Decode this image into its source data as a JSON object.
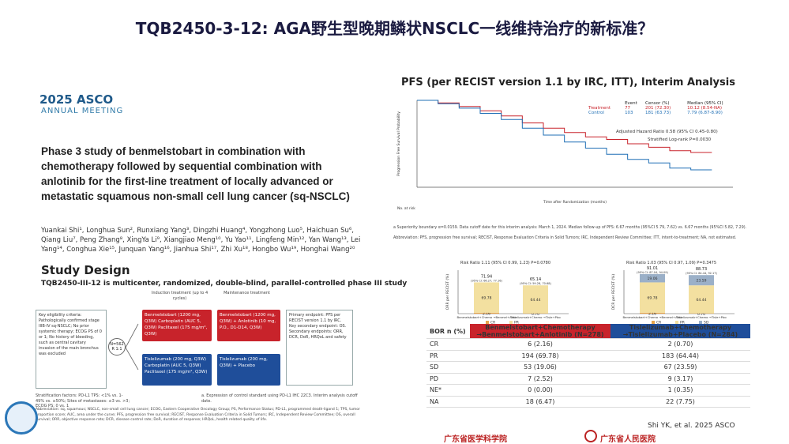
{
  "title": "TQB2450-3-12: AGA野生型晚期鳞状NSCLC一线维持治疗的新标准？",
  "conference": {
    "year_name": "2025 ASCO",
    "subtitle": "ANNUAL MEETING"
  },
  "study_title": "Phase 3 study of benmelstobart in combination with chemotherapy followed by sequential combination with anlotinib for the first-line treatment of locally advanced or metastatic squamous non-small cell lung cancer (sq-NSCLC)",
  "authors": "Yuankai Shi¹, Longhua Sun², Runxiang Yang³, Dingzhi Huang⁴, Yongzhong Luo⁵, Haichuan Su⁶, Qiang Liu⁷, Peng Zhang⁸, XingYa Li⁹, Xiangjiao Meng¹⁰, Yu Yao¹¹, Lingfeng Min¹², Yan Wang¹³, Lei Yang¹⁴, Conghua Xie¹⁵, Junquan Yang¹⁶, Jianhua Shi¹⁷, Zhi Xu¹⁸, Hongbo Wu¹⁹, Honghai Wang²⁰",
  "study_design": {
    "heading": "Study Design",
    "subheading": "TQB2450-III-12 is multicenter, randomized, double-blind, parallel-controlled phase III study",
    "criteria": "Key eligibility criteria: Pathologically confirmed stage IIIB-IV sq-NSCLC; No prior systemic therapy; ECOG PS of 0 or 1; No history of bleeding, such as central cavitary invasion of the main bronchus was excluded",
    "randomization": "N=562 R 1:1",
    "induction_label": "Induction treatment (up to 4 cycles)",
    "maintenance_label": "Maintenance treatment",
    "arm_a_induction": "Benmelstobart (1200 mg, Q3W) Carboplatin (AUC 5, Q3W) Paclitaxel (175 mg/m², Q3W)",
    "arm_a_maint": "Benmelstobart (1200 mg, Q3W) + Anlotinib (10 mg, P.O., D1-D14, Q3W)",
    "arm_b_induction": "Tislelizumab (200 mg, Q3W) Carboplatin (AUC 5, Q3W) Paclitaxel (175 mg/m², Q3W)",
    "arm_b_maint": "Tislelizumab (200 mg, Q3W) + Placebo",
    "endpoints": "Primary endpoint: PFS per RECIST version 1.1 by IRC. Key secondary endpoint: OS. Secondary endpoints: ORR, DCR, DoR, HRQoL and safety",
    "stratification": "Stratification factors: PD-L1 TPS: <1% vs. 1-49% vs. ≥50%; Sites of metastases: ≤3 vs. >3; ECOG PS: 0 vs. 1",
    "note": "a. Expression of control standard using PD-L1 IHC 22C3. Interim analysis cutoff date.",
    "abbrev": "Abbreviation: sq, squamous; NSCLC, non-small cell lung cancer; ECOG, Eastern Cooperative Oncology Group; PS, Performance Status; PD-L1, programmed death-ligand 1; TPS, tumor proportion score; AUC, area under the curve; PFS, progression free survival; RECIST, Response Evaluation Criteria in Solid Tumors; IRC, Independent Review Committee; OS, overall survival; ORR, objective response rate; DCR, disease control rate; DoR, duration of response; HRQoL, health related quality of life."
  },
  "pfs": {
    "title": "PFS (per RECIST version 1.1 by IRC, ITT), Interim Analysis",
    "table_headers": [
      "",
      "Event",
      "Censor (%)",
      "Median (95% CI)"
    ],
    "rows": [
      {
        "arm": "Treatment",
        "event": "77",
        "censor": "201 (72.30)",
        "median": "10.12 (8.54-NA)",
        "color": "#c8232b"
      },
      {
        "arm": "Control",
        "event": "103",
        "censor": "181 (63.73)",
        "median": "7.79 (6.87-8.90)",
        "color": "#1f6fb5"
      }
    ],
    "hr_text": "Adjusted Hazard Ratio 0.58 (95% CI 0.45-0.80)",
    "logrank": "Stratified Log-rank P=0.0030",
    "footnote": "a Superiority boundary α=0.0159. Data cutoff date for this interim analysis: March 1, 2024. Median follow-up of PFS: 6.67 months (95%CI 5.79, 7.62) vs. 6.67 months (95%CI 5.82, 7.29).",
    "abbrev": "Abbreviation: PFS, progression free survival; RECIST, Response Evaluation Criteria in Solid Tumors; IRC, Independent Review Committee; ITT, intent-to-treatment; NA, not estimated.",
    "x_label": "Time after Randomization (months)",
    "y_label": "Progression Free Survival Probability",
    "at_risk_label": "No. at risk"
  },
  "chart_data": [
    {
      "type": "line",
      "title": "PFS (per RECIST version 1.1 by IRC, ITT), Interim Analysis",
      "xlabel": "Time after Randomization (months)",
      "ylabel": "Progression Free Survival Probability",
      "xlim": [
        0,
        15
      ],
      "ylim": [
        0,
        1
      ],
      "series": [
        {
          "name": "Treatment",
          "color": "#c8232b",
          "x": [
            0,
            1,
            2,
            3,
            4,
            5,
            6,
            7,
            8,
            9,
            10,
            11,
            12,
            13,
            14
          ],
          "y": [
            1.0,
            0.97,
            0.93,
            0.88,
            0.82,
            0.74,
            0.68,
            0.63,
            0.58,
            0.55,
            0.5,
            0.46,
            0.42,
            0.4,
            0.4
          ]
        },
        {
          "name": "Control",
          "color": "#1f6fb5",
          "x": [
            0,
            1,
            2,
            3,
            4,
            5,
            6,
            7,
            8,
            9,
            10,
            11,
            12,
            13,
            14
          ],
          "y": [
            1.0,
            0.96,
            0.91,
            0.85,
            0.78,
            0.68,
            0.6,
            0.52,
            0.45,
            0.38,
            0.32,
            0.28,
            0.22,
            0.2,
            0.2
          ]
        }
      ]
    },
    {
      "type": "bar",
      "title": "Risk Ratio 1.11 (95% CI 0.99, 1.23) P=0.0780",
      "ylabel": "ORR per RECIST (%)",
      "categories": [
        "Benmelstobart+Chemo →Benmel+Anlo",
        "Tislelizumab+Chemo →Tisle+Pbo"
      ],
      "stack": [
        [
          2.16,
          69.78
        ],
        [
          0.7,
          64.44
        ]
      ],
      "totals": [
        "71.94",
        "65.14"
      ],
      "ci": [
        "(95% CI: 66.27, 77.16)",
        "(95% CI: 59.28, 70.68)"
      ],
      "legend": [
        "CR",
        "PR"
      ],
      "ylim": [
        0,
        100
      ]
    },
    {
      "type": "bar",
      "title": "Risk Ratio 1.03 (95% CI 0.97, 1.09) P=0.3475",
      "ylabel": "DCR per RECIST (%)",
      "categories": [
        "Benmelstobart+Chemo →Benmel+Anlo",
        "Tislelizumab+Chemo →Tisle+Pbo"
      ],
      "stack": [
        [
          2.16,
          69.78,
          19.06
        ],
        [
          0.7,
          64.44,
          23.59
        ]
      ],
      "totals": [
        "91.01",
        "88.73"
      ],
      "ci": [
        "(95% CI: 87.04, 94.09)",
        "(95% CI: 84.44, 92.17)"
      ],
      "legend": [
        "CR",
        "PR",
        "SD"
      ],
      "ylim": [
        0,
        100
      ]
    }
  ],
  "bor": {
    "col1": "BOR n (%)",
    "col2": "Benmelstobart+Chemotherapy →Benmelstobart+Anlotinib (N=278)",
    "col3": "Tislelizumab+Chemotherapy →Tislelizumab+Placebo (N=284)",
    "rows": [
      {
        "k": "CR",
        "a": "6 (2.16)",
        "b": "2 (0.70)"
      },
      {
        "k": "PR",
        "a": "194 (69.78)",
        "b": "183 (64.44)"
      },
      {
        "k": "SD",
        "a": "53 (19.06)",
        "b": "67 (23.59)"
      },
      {
        "k": "PD",
        "a": "7 (2.52)",
        "b": "9 (3.17)"
      },
      {
        "k": "NE*",
        "a": "0 (0.00)",
        "b": "1 (0.35)"
      },
      {
        "k": "NA",
        "a": "18 (6.47)",
        "b": "22 (7.75)"
      }
    ]
  },
  "reference": "Shi YK, et al. 2025 ASCO",
  "footer": {
    "left": "广东省医学科学院",
    "right": "广东省人民医院"
  }
}
